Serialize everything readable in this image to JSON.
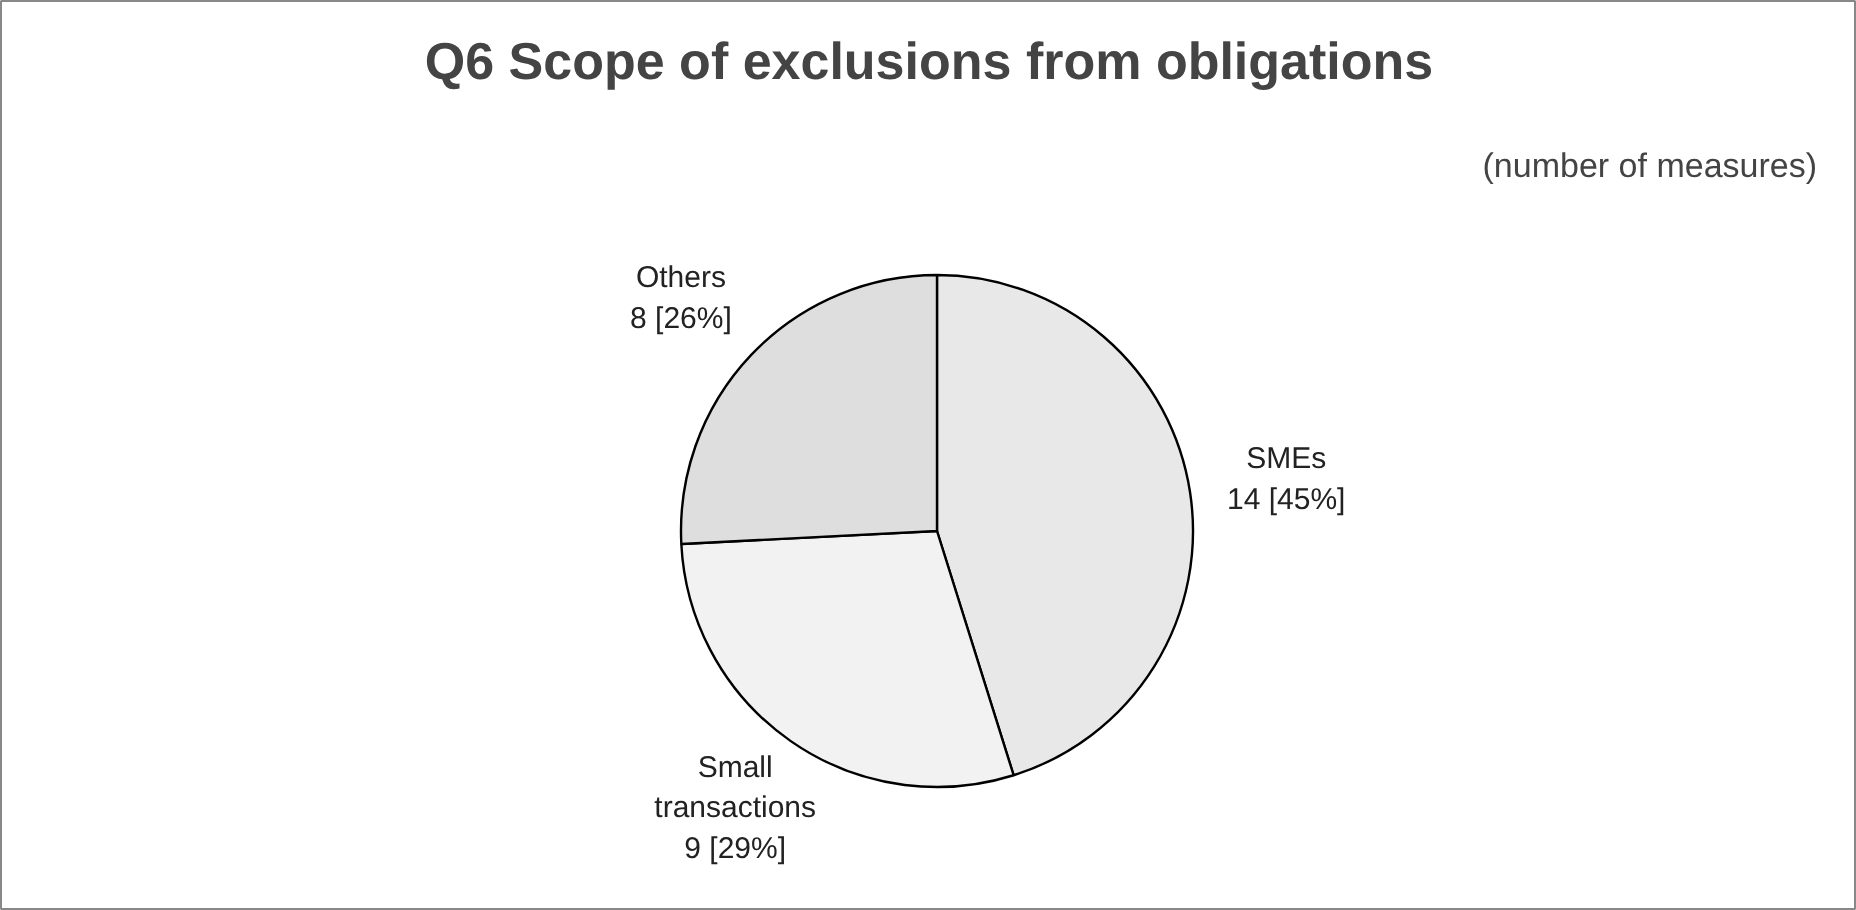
{
  "chart_data": {
    "type": "pie",
    "title": "Q6 Scope of exclusions from obligations",
    "subtitle": "(number of measures)",
    "categories": [
      "SMEs",
      "Small transactions",
      "Others"
    ],
    "values": [
      14,
      9,
      8
    ],
    "value_labels": [
      "14 [45%]",
      "9 [29%]",
      "8 [26%]"
    ],
    "colors": [
      "#e8e8e8",
      "#f2f2f2",
      "#dedede"
    ]
  }
}
